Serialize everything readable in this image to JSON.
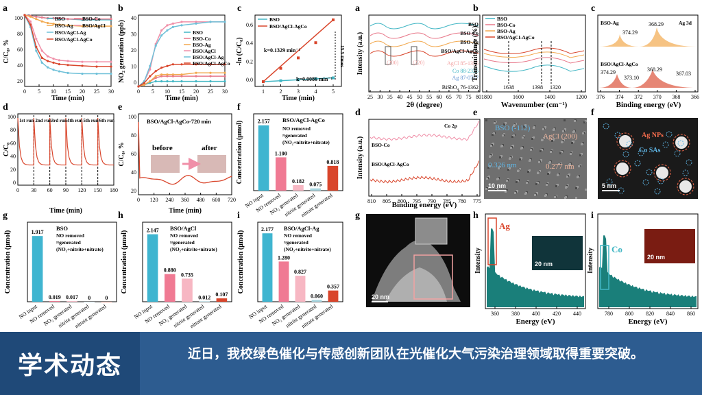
{
  "banner": {
    "title": "学术动态",
    "text": "近日，我校绿色催化与传感创新团队在光催化大气污染治理领域取得重要突破。"
  },
  "colors": {
    "bso": "#41b6c4",
    "bso_co": "#e8788a",
    "bso_ag": "#f2a94f",
    "bso_agcl": "#f08fa8",
    "bso_agcl_ag": "#6ec0d8",
    "bso_agcl_agco": "#d9452b",
    "bar_blue": "#3fb5d0",
    "bar_pink": "#f07a93",
    "banner_dark": "#1f4978",
    "banner_light": "#2d5c90"
  },
  "panel_letters": {
    "a": "a",
    "b": "b",
    "c": "c",
    "d": "d",
    "e": "e",
    "f": "f",
    "g": "g",
    "h": "h",
    "i": "i"
  },
  "left": {
    "a": {
      "ylabel": "C/C₀, %",
      "xlabel": "Time (min)",
      "xticks": [
        "0",
        "5",
        "10",
        "15",
        "20",
        "25",
        "30"
      ],
      "yticks": [
        "100",
        "80",
        "60",
        "40",
        "20"
      ],
      "legend": [
        "BSO",
        "BSO-Co",
        "BSO-Ag",
        "BSO/AgCl",
        "BSO/AgCl-Ag",
        "BSO/AgCl-AgCo"
      ]
    },
    "b": {
      "ylabel": "NO₂ generation (ppb)",
      "xlabel": "Time (min)",
      "xticks": [
        "0",
        "5",
        "10",
        "15",
        "20",
        "25",
        "30"
      ],
      "yticks": [
        "40",
        "30",
        "20",
        "10",
        "0"
      ],
      "legend": [
        "BSO",
        "BSO-Co",
        "BSO-Ag",
        "BSO/AgCl",
        "BSO/AgCl-Ag",
        "BSO/AgCl-AgCo"
      ]
    },
    "c": {
      "ylabel": "-ln (C/C₀)",
      "xlabel": "Time (min)",
      "xticks": [
        "1",
        "2",
        "3",
        "4",
        "5"
      ],
      "yticks": [
        "0.6",
        "0.4",
        "0.2",
        "0.0"
      ],
      "legend": [
        "BSO",
        "BSO/AgCl-AgCo"
      ],
      "k1": "k=0.1329 min⁻¹",
      "k2": "k=0.0086 min⁻¹",
      "times": "15.5 times"
    },
    "d": {
      "ylabel": "C/C₀",
      "xlabel": "Time (min)",
      "xticks": [
        "0",
        "30",
        "60",
        "90",
        "120",
        "150",
        "180"
      ],
      "yticks": [
        "100",
        "80",
        "60",
        "40",
        "20",
        "0"
      ],
      "runs": [
        "1st run",
        "2nd run",
        "3rd run",
        "4th run",
        "5th run",
        "6th run"
      ]
    },
    "e": {
      "ylabel": "C/C₀, %",
      "xlabel": "Time (min)",
      "xticks": [
        "0",
        "120",
        "240",
        "360",
        "480",
        "600",
        "720"
      ],
      "yticks": [
        "100",
        "80",
        "60",
        "40",
        "20"
      ],
      "title": "BSO/AgCl-AgCo-720 min",
      "before": "before",
      "after": "after"
    },
    "f": {
      "ylabel": "Concentration (μmol)",
      "title": "BSO/AgCl-AgCo",
      "note1": "NO removed",
      "note2": "≈generated",
      "note3": "(NO₂+nitrite+nitrate)"
    },
    "g": {
      "ylabel": "Concentration (μmol)",
      "title": "BSO",
      "note1": "NO removed",
      "note2": "≈generated",
      "note3": "(NO₂+nitrite+nitrate)"
    },
    "h": {
      "ylabel": "Concentration (μmol)",
      "title": "BSO/AgCl",
      "note1": "NO removed",
      "note2": "≈generated",
      "note3": "(NO₂+nitrite+nitrate)"
    },
    "i": {
      "ylabel": "Concentration (μmol)",
      "title": "BSO/AgCl-Ag",
      "note1": "NO removed",
      "note2": "≈generated",
      "note3": "(NO₂+nitrite+nitrate)"
    },
    "bar_categories": [
      "NO input",
      "NO removed",
      "NO₂ generated",
      "nitrite generated",
      "nitrate generated"
    ]
  },
  "right": {
    "a": {
      "ylabel": "Intensity (a.u.)",
      "xlabel": "2θ (degree)",
      "xticks": [
        "25",
        "30",
        "35",
        "40",
        "45",
        "50",
        "55",
        "60",
        "65",
        "70",
        "75",
        "80"
      ],
      "curves": [
        "BSO",
        "BSO-Co",
        "BSO-Ag",
        "BSO/AgCl-AgCo"
      ],
      "refs": [
        "AgCl 85-1355",
        "Co 88-2325",
        "Ag 87-0717",
        "BiSbO₄ 76-1362"
      ],
      "peaks": [
        "(200)",
        "(220)"
      ]
    },
    "b": {
      "ylabel": "Transmittance (%)",
      "xlabel": "Wavenumber (cm⁻¹)",
      "xticks": [
        "1800",
        "1600",
        "1400",
        "1200"
      ],
      "legend": [
        "BSO",
        "BSO-Co",
        "BSO-Ag",
        "BSO/AgCl-AgCo"
      ],
      "marks": [
        "1638",
        "1398",
        "1320"
      ]
    },
    "c": {
      "xlabel": "Binding energy (eV)",
      "xticks": [
        "376",
        "374",
        "372",
        "370",
        "368",
        "366"
      ],
      "title": "Ag 3d",
      "top": "BSO-Ag",
      "bottom": "BSO/AgCl-AgCo",
      "p1": "374.29",
      "p2": "368.29",
      "p3": "374.29",
      "p4": "373.10",
      "p5": "368.29",
      "p6": "367.03"
    },
    "d": {
      "ylabel": "Intensity (a.u.)",
      "xlabel": "Binding energy (eV)",
      "xticks": [
        "810",
        "805",
        "800",
        "795",
        "790",
        "785",
        "780",
        "775"
      ],
      "title": "Co 2p",
      "top": "BSO-Co",
      "bottom": "BSO/AgCl-AgCo"
    },
    "e": {
      "l1": "BSO (-112)",
      "l2": "0.326 nm",
      "l3": "AgCl (200)",
      "l4": "0.277 nm",
      "scale": "10 nm"
    },
    "f": {
      "l1": "Ag NPs",
      "l2": "Co SAs",
      "scale": "5 nm"
    },
    "g": {
      "scale": "20 nm"
    },
    "h": {
      "ylabel": "Intensity",
      "xlabel": "Energy (eV)",
      "xticks": [
        "360",
        "380",
        "400",
        "420",
        "440"
      ],
      "element": "Ag",
      "scale": "20 nm"
    },
    "i": {
      "ylabel": "Intensity",
      "xlabel": "Energy (eV)",
      "xticks": [
        "780",
        "800",
        "820",
        "840",
        "860"
      ],
      "element": "Co",
      "scale": "20 nm"
    }
  },
  "chart_data": [
    {
      "type": "line",
      "title": "a",
      "xlabel": "Time (min)",
      "ylabel": "C/C0, %",
      "ylim": [
        10,
        100
      ],
      "x": [
        0,
        2,
        4,
        6,
        8,
        10,
        12,
        15,
        20,
        25,
        30
      ],
      "series": [
        {
          "name": "BSO",
          "values": [
            100,
            99,
            98,
            97,
            96,
            96,
            95,
            95,
            94,
            94,
            94
          ]
        },
        {
          "name": "BSO-Co",
          "values": [
            100,
            99,
            98,
            97,
            96,
            96,
            96,
            95,
            95,
            95,
            95
          ]
        },
        {
          "name": "BSO-Ag",
          "values": [
            100,
            98,
            95,
            92,
            90,
            89,
            88,
            87,
            86,
            86,
            86
          ]
        },
        {
          "name": "BSO/AgCl",
          "values": [
            100,
            92,
            70,
            55,
            48,
            45,
            43,
            42,
            41,
            41,
            41
          ]
        },
        {
          "name": "BSO/AgCl-Ag",
          "values": [
            100,
            85,
            55,
            40,
            34,
            31,
            29,
            27,
            26,
            26,
            26
          ]
        },
        {
          "name": "BSO/AgCl-AgCo",
          "values": [
            100,
            88,
            60,
            46,
            42,
            40,
            38,
            37,
            36,
            35,
            35
          ]
        }
      ]
    },
    {
      "type": "line",
      "title": "b",
      "xlabel": "Time (min)",
      "ylabel": "NO2 generation (ppb)",
      "ylim": [
        0,
        42
      ],
      "x": [
        0,
        2,
        4,
        6,
        8,
        10,
        12,
        15,
        20,
        25,
        30
      ],
      "series": [
        {
          "name": "BSO",
          "values": [
            0,
            1,
            2,
            3,
            3,
            3,
            3,
            3,
            3,
            3,
            3
          ]
        },
        {
          "name": "BSO-Co",
          "values": [
            0,
            1,
            3,
            5,
            6,
            6,
            6,
            6,
            6,
            6,
            6
          ]
        },
        {
          "name": "BSO-Ag",
          "values": [
            0,
            1,
            3,
            6,
            7,
            7,
            7,
            7,
            8,
            8,
            8
          ]
        },
        {
          "name": "BSO/AgCl",
          "values": [
            0,
            3,
            10,
            25,
            33,
            36,
            37,
            38,
            38,
            38,
            38
          ]
        },
        {
          "name": "BSO/AgCl-Ag",
          "values": [
            0,
            3,
            12,
            24,
            30,
            33,
            35,
            36,
            37,
            38,
            38
          ]
        },
        {
          "name": "BSO/AgCl-AgCo",
          "values": [
            0,
            2,
            6,
            9,
            11,
            12,
            13,
            13,
            13,
            13,
            13
          ]
        }
      ]
    },
    {
      "type": "scatter",
      "title": "c",
      "xlabel": "Time (min)",
      "ylabel": "-ln(C/C0)",
      "ylim": [
        -0.05,
        0.7
      ],
      "x": [
        1,
        2,
        3,
        4,
        5
      ],
      "series": [
        {
          "name": "BSO",
          "values": [
            0.0,
            0.01,
            0.02,
            0.03,
            0.04
          ]
        },
        {
          "name": "BSO/AgCl-AgCo",
          "values": [
            0.0,
            0.14,
            0.25,
            0.41,
            0.65
          ]
        }
      ]
    },
    {
      "type": "bar",
      "title": "f",
      "categories": [
        "NO input",
        "NO removed",
        "NO2 generated",
        "nitrite generated",
        "nitrate generated"
      ],
      "values": [
        2.157,
        1.1,
        0.182,
        0.075,
        0.818
      ]
    },
    {
      "type": "bar",
      "title": "g",
      "categories": [
        "NO input",
        "NO removed",
        "NO2 generated",
        "nitrite generated",
        "nitrate generated"
      ],
      "values": [
        1.917,
        0.019,
        0.017,
        0,
        0
      ],
      "labels": [
        "1.917",
        "0.019",
        "0.017",
        "0",
        "0"
      ]
    },
    {
      "type": "bar",
      "title": "h",
      "categories": [
        "NO input",
        "NO removed",
        "NO2 generated",
        "nitrite generated",
        "nitrate generated"
      ],
      "values": [
        2.147,
        0.88,
        0.735,
        0.012,
        0.107
      ]
    },
    {
      "type": "bar",
      "title": "i",
      "categories": [
        "NO input",
        "NO removed",
        "NO2 generated",
        "nitrite generated",
        "nitrate generated"
      ],
      "values": [
        2.177,
        1.28,
        0.827,
        0.06,
        0.357
      ]
    }
  ]
}
